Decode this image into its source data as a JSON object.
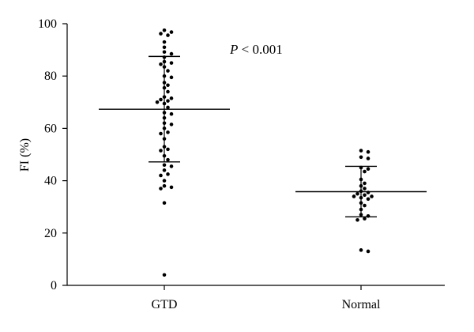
{
  "chart_data": {
    "type": "scatter",
    "subtype": "dot-plot with mean and SD bars",
    "categories": [
      "GTD",
      "Normal"
    ],
    "ylabel": "FI (%)",
    "xlabel": "",
    "ylim": [
      0,
      100
    ],
    "yticks": [
      0,
      20,
      40,
      60,
      80,
      100
    ],
    "grid": false,
    "annotation": {
      "italic": "P",
      "text": " < 0.001"
    },
    "groups": [
      {
        "category": "GTD",
        "mean": 67.3,
        "sd_upper": 87.5,
        "sd_lower": 47.2,
        "values": [
          97.5,
          96.8,
          96.2,
          95.6,
          93.0,
          91.0,
          89.2,
          88.5,
          87.2,
          85.5,
          85.0,
          84.5,
          83.5,
          82.0,
          80.0,
          79.5,
          77.5,
          76.5,
          75.5,
          74.0,
          72.0,
          71.5,
          71.0,
          70.5,
          70.0,
          69.5,
          68.0,
          66.0,
          65.5,
          64.0,
          62.0,
          61.5,
          60.0,
          58.5,
          58.0,
          56.0,
          53.0,
          52.0,
          51.5,
          49.5,
          48.0,
          46.0,
          45.5,
          44.0,
          42.5,
          42.0,
          40.0,
          38.0,
          37.5,
          37.0,
          31.5,
          4.0
        ]
      },
      {
        "category": "Normal",
        "mean": 35.8,
        "sd_upper": 45.5,
        "sd_lower": 26.2,
        "values": [
          51.5,
          51.0,
          49.0,
          48.5,
          45.0,
          44.5,
          43.5,
          40.5,
          39.0,
          38.0,
          37.0,
          36.0,
          35.5,
          35.0,
          34.5,
          34.0,
          34.0,
          33.5,
          33.0,
          31.5,
          30.5,
          29.0,
          27.0,
          26.5,
          25.5,
          25.0,
          13.5,
          13.0
        ]
      }
    ]
  }
}
